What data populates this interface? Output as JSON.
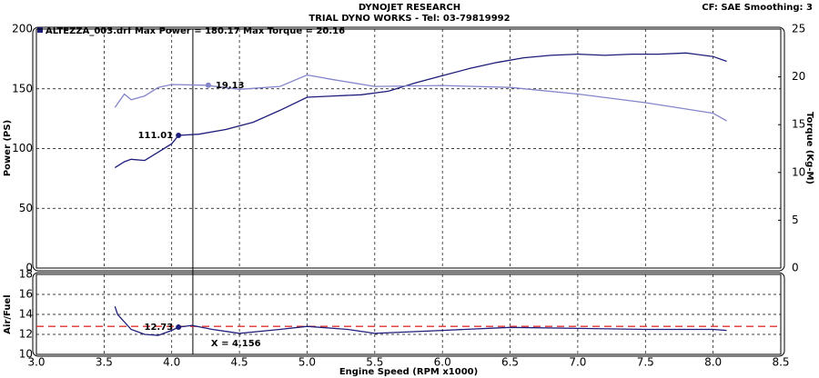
{
  "header": {
    "title": "DYNOJET RESEARCH",
    "subtitle": "TRIAL DYNO WORKS - Tel: 03-79819992",
    "settings": "CF: SAE  Smoothing: 3"
  },
  "chart_data": [
    {
      "type": "line",
      "legend": "ALTEZZA_003.drf Max Power = 180.17    Max Torque = 20.16",
      "ylabel": "Power (PS)",
      "y2label": "Torque (Kg-M)",
      "xlim": [
        3.0,
        8.5
      ],
      "xticks": [
        3.0,
        3.5,
        4.0,
        4.5,
        5.0,
        5.5,
        6.0,
        6.5,
        7.0,
        7.5,
        8.0,
        8.5
      ],
      "ylim": [
        0,
        200
      ],
      "yticks": [
        0,
        50,
        100,
        150,
        200
      ],
      "y2lim": [
        0,
        25
      ],
      "y2ticks": [
        0,
        5,
        10,
        15,
        20,
        25
      ],
      "grid": true,
      "cursor": {
        "value": 4.156,
        "label": "X = 4.156"
      },
      "series": [
        {
          "name": "Power",
          "color": "#1c1c7a",
          "x": [
            3.58,
            3.65,
            3.7,
            3.8,
            3.9,
            4.0,
            4.05,
            4.2,
            4.4,
            4.6,
            4.8,
            5.0,
            5.2,
            5.4,
            5.6,
            5.8,
            6.0,
            6.2,
            6.4,
            6.6,
            6.8,
            7.0,
            7.2,
            7.4,
            7.6,
            7.8,
            8.0,
            8.1
          ],
          "values": [
            84,
            89,
            91,
            90,
            97,
            104,
            111,
            112,
            116,
            122,
            132,
            143,
            144,
            145,
            148,
            155,
            161,
            167,
            172,
            176,
            178,
            179,
            178,
            179,
            179,
            180,
            177,
            173
          ]
        },
        {
          "name": "Torque",
          "color": "#8484cc",
          "axis": "y2",
          "x": [
            3.58,
            3.65,
            3.7,
            3.8,
            3.9,
            4.0,
            4.25,
            4.5,
            4.8,
            5.0,
            5.2,
            5.5,
            6.0,
            6.5,
            7.0,
            7.5,
            8.0,
            8.1
          ],
          "values": [
            16.8,
            18.2,
            17.6,
            18.0,
            18.9,
            19.2,
            19.13,
            18.7,
            19.0,
            20.2,
            19.7,
            19.0,
            19.1,
            18.9,
            18.2,
            17.3,
            16.2,
            15.4
          ]
        }
      ],
      "annotations": [
        {
          "x": 4.05,
          "value": 111.01,
          "color": "#1c1c7a"
        },
        {
          "x": 4.27,
          "value": 19.13,
          "color": "#8484cc",
          "axis": "y2"
        }
      ]
    },
    {
      "type": "line",
      "ylabel": "Air/Fuel",
      "xlabel": "Engine Speed (RPM x1000)",
      "xlim": [
        3.0,
        8.5
      ],
      "xticks": [
        {
          "value": 3.0,
          "label": "3.0"
        },
        3.5,
        {
          "value": 4.0,
          "label": "4.0"
        },
        4.5,
        {
          "value": 5.0,
          "label": "5.0"
        },
        5.5,
        {
          "value": 6.0,
          "label": "6.0"
        },
        6.5,
        {
          "value": 7.0,
          "label": "7.0"
        },
        7.5,
        {
          "value": 8.0,
          "label": "8.0"
        },
        8.5
      ],
      "ylim": [
        10,
        18
      ],
      "yticks": [
        10,
        12,
        14,
        16,
        18
      ],
      "grid": true,
      "reference_line": {
        "value": 12.8,
        "color": "#e03030"
      },
      "series": [
        {
          "name": "Air/Fuel",
          "color": "#1c1c7a",
          "x": [
            3.58,
            3.6,
            3.7,
            3.8,
            3.9,
            4.0,
            4.05,
            4.15,
            4.3,
            4.5,
            4.8,
            5.0,
            5.3,
            5.5,
            6.0,
            6.5,
            7.0,
            7.5,
            8.0,
            8.1
          ],
          "values": [
            14.8,
            14.0,
            12.5,
            12.0,
            11.9,
            12.4,
            12.73,
            12.9,
            12.5,
            12.1,
            12.5,
            12.8,
            12.5,
            12.1,
            12.4,
            12.7,
            12.6,
            12.5,
            12.5,
            12.4
          ]
        }
      ],
      "annotations": [
        {
          "x": 4.05,
          "value": 12.73,
          "color": "#1c1c7a"
        }
      ]
    }
  ]
}
